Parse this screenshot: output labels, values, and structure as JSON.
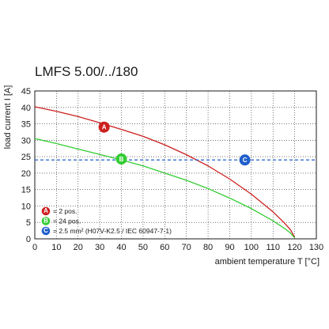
{
  "chart_data": {
    "type": "line",
    "title": "LMFS 5.00/../180",
    "xlabel": "ambient temperature T [°C]",
    "ylabel": "load current I [A]",
    "xlim": [
      0,
      130
    ],
    "ylim": [
      0,
      45
    ],
    "xticks": [
      0,
      10,
      20,
      30,
      40,
      50,
      60,
      70,
      80,
      90,
      100,
      110,
      120,
      130
    ],
    "yticks": [
      0,
      5,
      10,
      15,
      20,
      25,
      30,
      35,
      40,
      45
    ],
    "grid": true,
    "colors": {
      "A": "#cc1f1f",
      "B": "#33cc33",
      "C": "#1f5fcc",
      "grid": "#222222"
    },
    "series": [
      {
        "marker": "A",
        "x": [
          0,
          10,
          20,
          30,
          40,
          50,
          60,
          70,
          80,
          90,
          100,
          110,
          115,
          118,
          120
        ],
        "y": [
          40.2,
          38.8,
          37.2,
          35.3,
          33.3,
          31.2,
          28.6,
          25.6,
          22.2,
          18.2,
          13.6,
          8.2,
          5.0,
          2.8,
          0.5
        ]
      },
      {
        "marker": "B",
        "x": [
          0,
          10,
          20,
          30,
          40,
          50,
          60,
          70,
          80,
          90,
          100,
          110,
          115,
          118,
          120
        ],
        "y": [
          30.5,
          29.0,
          27.3,
          25.7,
          24.0,
          22.2,
          20.0,
          17.8,
          15.3,
          12.4,
          9.2,
          5.5,
          3.3,
          1.8,
          0.3
        ]
      },
      {
        "marker": "C",
        "style": "dashed",
        "x": [
          0,
          130
        ],
        "y": [
          24,
          24
        ]
      }
    ],
    "markers": [
      {
        "letter": "A",
        "x": 32,
        "y": 34
      },
      {
        "letter": "B",
        "x": 40,
        "y": 24.3
      },
      {
        "letter": "C",
        "x": 97,
        "y": 24
      }
    ],
    "legend": {
      "placement": "bottom-left",
      "entries": [
        {
          "letter": "A",
          "text": "= 2 pos."
        },
        {
          "letter": "B",
          "text": "= 24 pos."
        },
        {
          "letter": "C",
          "text": "= 2.5 mm² (H07V-K2.5 / IEC 60947-7-1)"
        }
      ]
    }
  }
}
